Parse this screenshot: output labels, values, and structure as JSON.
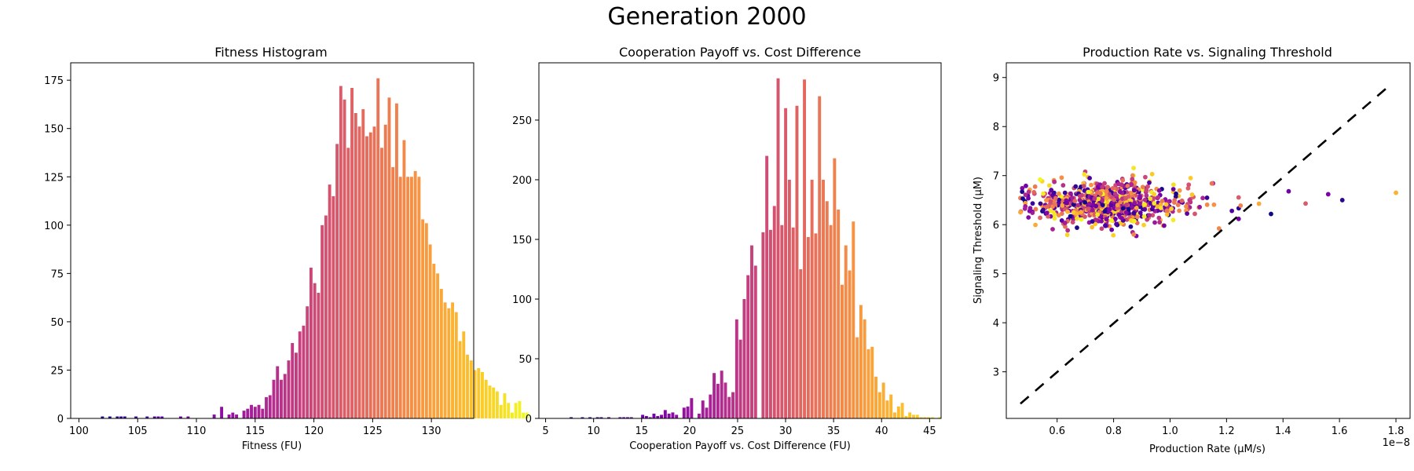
{
  "figure": {
    "title": "Generation 2000"
  },
  "chart_data": [
    {
      "type": "bar",
      "title": "Fitness Histogram",
      "xlabel": "Fitness (FU)",
      "ylabel": "",
      "colormap": "plasma",
      "xlim": [
        99.3,
        133.6
      ],
      "ylim": [
        0,
        184
      ],
      "xticks": [
        100,
        105,
        110,
        115,
        120,
        125,
        130
      ],
      "yticks": [
        0,
        25,
        50,
        75,
        100,
        125,
        150,
        175
      ],
      "bin_start": 100.9,
      "bin_width": 0.317,
      "values": [
        0,
        0,
        0,
        1,
        0,
        1,
        0,
        1,
        1,
        1,
        0,
        0,
        1,
        0,
        0,
        1,
        0,
        1,
        1,
        1,
        0,
        0,
        0,
        0,
        1,
        0,
        1,
        0,
        0,
        0,
        0,
        0,
        0,
        2,
        0,
        6,
        0,
        2,
        3,
        2,
        0,
        4,
        5,
        7,
        6,
        7,
        5,
        11,
        12,
        20,
        27,
        20,
        23,
        30,
        39,
        34,
        45,
        48,
        58,
        78,
        70,
        65,
        100,
        105,
        121,
        115,
        142,
        172,
        165,
        140,
        171,
        158,
        151,
        160,
        146,
        148,
        151,
        176,
        140,
        152,
        166,
        130,
        163,
        125,
        144,
        125,
        125,
        128,
        125,
        103,
        101,
        90,
        80,
        75,
        67,
        60,
        57,
        60,
        55,
        40,
        45,
        33,
        30,
        25,
        26,
        24,
        20,
        17,
        16,
        14,
        7,
        13,
        8,
        3,
        8,
        9,
        3,
        3
      ]
    },
    {
      "type": "bar",
      "title": "Cooperation Payoff vs. Cost Difference",
      "xlabel": "Cooperation Payoff vs. Cost Difference (FU)",
      "ylabel": "",
      "colormap": "plasma",
      "xlim": [
        4.3,
        46.2
      ],
      "ylim": [
        0,
        298
      ],
      "xticks": [
        5,
        10,
        15,
        20,
        25,
        30,
        35,
        40,
        45
      ],
      "yticks": [
        0,
        50,
        100,
        150,
        200,
        250
      ],
      "bin_start": 6.3,
      "bin_width": 0.392,
      "values": [
        0,
        0,
        0,
        1,
        0,
        0,
        1,
        0,
        1,
        0,
        1,
        1,
        0,
        1,
        0,
        0,
        1,
        1,
        1,
        1,
        0,
        0,
        3,
        2,
        1,
        4,
        2,
        3,
        7,
        4,
        5,
        3,
        0,
        9,
        10,
        17,
        0,
        4,
        15,
        9,
        20,
        38,
        29,
        40,
        30,
        18,
        22,
        83,
        66,
        100,
        120,
        145,
        128,
        0,
        156,
        220,
        158,
        178,
        285,
        162,
        260,
        200,
        160,
        262,
        125,
        284,
        152,
        200,
        155,
        270,
        200,
        182,
        162,
        218,
        175,
        112,
        145,
        124,
        165,
        68,
        95,
        83,
        58,
        60,
        35,
        22,
        30,
        15,
        20,
        5,
        10,
        13,
        2,
        5,
        3,
        3,
        1,
        1,
        1,
        1,
        0,
        1,
        0,
        0,
        0,
        0
      ]
    },
    {
      "type": "scatter",
      "title": "Production Rate vs. Signaling Threshold",
      "xlabel": "Production Rate",
      "xlabel_unit": "(μM/s)",
      "ylabel": "Signaling Threshold (μM)",
      "x_offset_text": "1e−8",
      "colormap": "plasma",
      "xlim": [
        0.42,
        1.85
      ],
      "ylim": [
        2.05,
        9.3
      ],
      "xticks": [
        "0.6",
        "0.8",
        "1.0",
        "1.2",
        "1.4",
        "1.6",
        "1.8"
      ],
      "yticks": [
        3,
        4,
        5,
        6,
        7,
        8,
        9
      ],
      "reference_line": {
        "style": "dashed",
        "color": "#000000",
        "x": [
          0.47,
          1.78
        ],
        "y": [
          2.35,
          8.85
        ]
      },
      "points": {
        "count": 800,
        "x_range": [
          0.47,
          1.8
        ],
        "y_range": [
          5.75,
          7.2
        ],
        "x_mode": 0.72,
        "y_center": 6.42,
        "outliers": [
          [
            1.8,
            6.65
          ],
          [
            1.61,
            6.5
          ],
          [
            1.56,
            6.62
          ],
          [
            1.48,
            6.43
          ],
          [
            1.42,
            6.68
          ]
        ]
      }
    }
  ]
}
